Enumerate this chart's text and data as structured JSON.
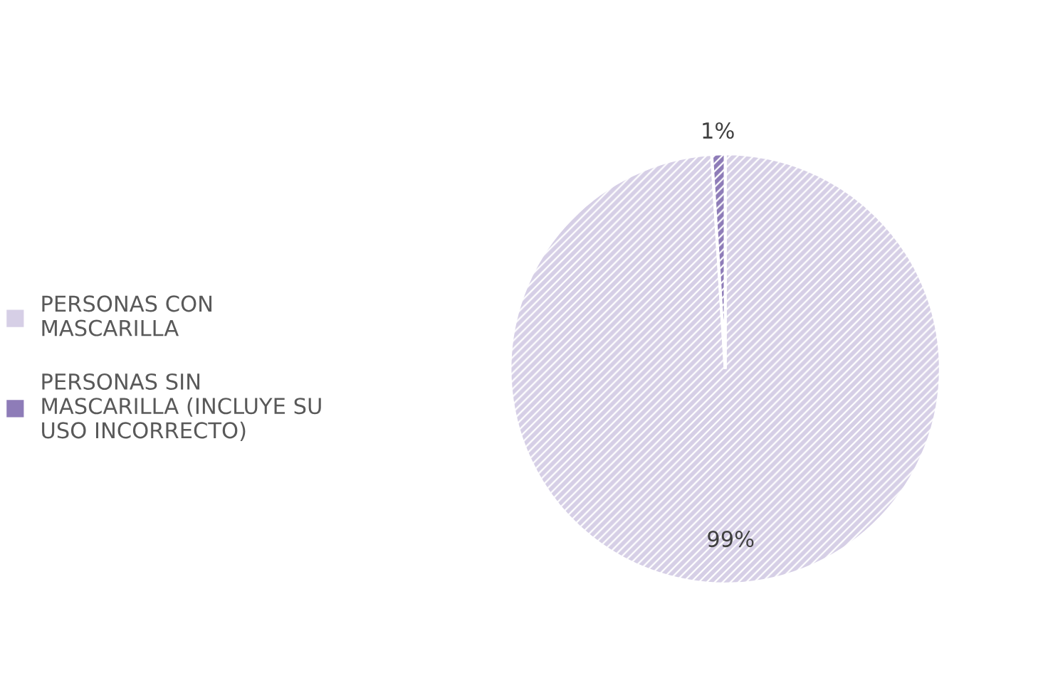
{
  "chart_data": {
    "type": "pie",
    "categories": [
      "PERSONAS CON\nMASCARILLA",
      "PERSONAS SIN\nMASCARILLA (INCLUYE SU\nUSO INCORRECTO)"
    ],
    "values": [
      99,
      1
    ],
    "colors": [
      "#d6cfe6",
      "#8e7cb8"
    ],
    "value_labels": [
      "99%",
      "1%"
    ],
    "legend": "left"
  }
}
